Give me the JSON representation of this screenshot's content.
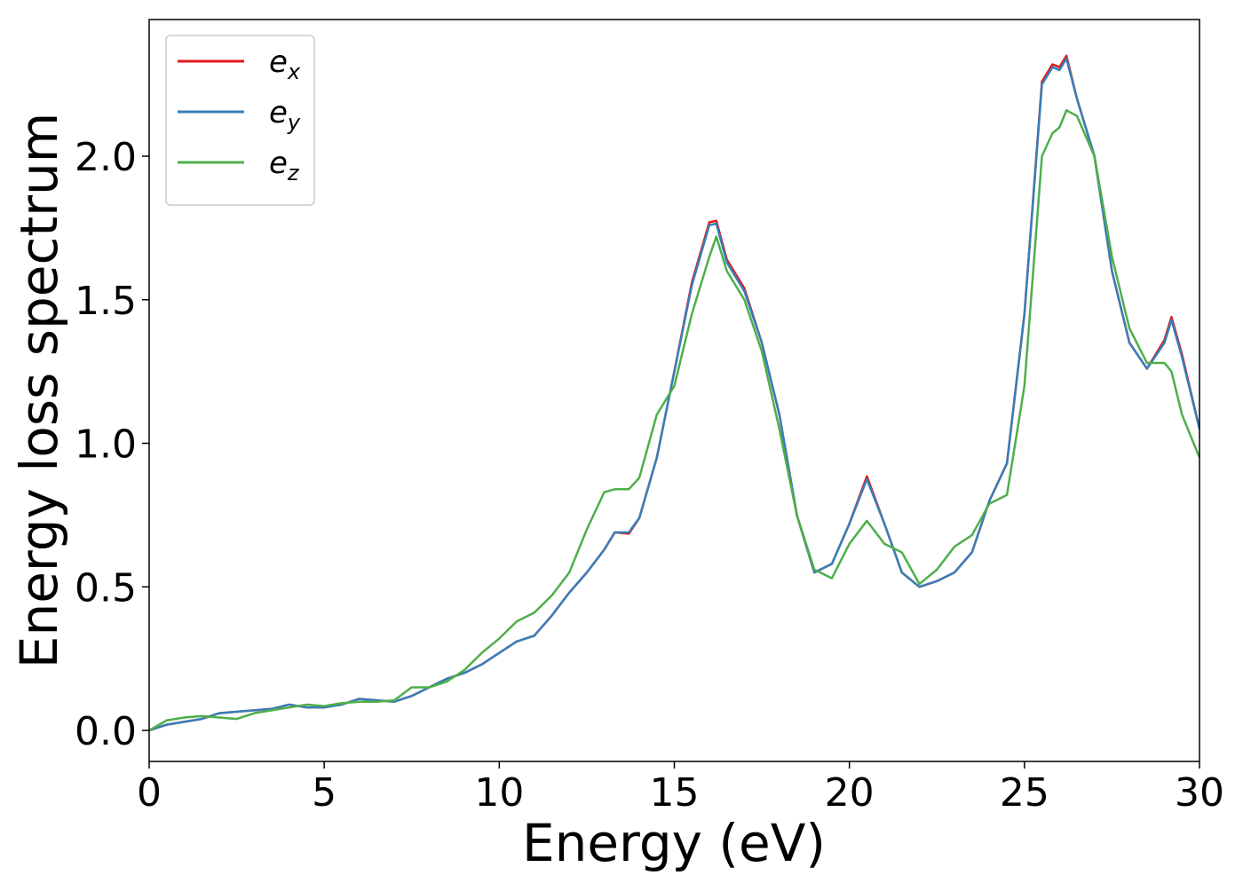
{
  "chart_data": {
    "type": "line",
    "xlabel": "Energy (eV)",
    "ylabel": "Energy loss spectrum",
    "x": [
      0,
      0.5,
      1,
      1.5,
      2,
      2.5,
      3,
      3.5,
      4,
      4.5,
      5,
      5.5,
      6,
      6.5,
      7,
      7.5,
      8,
      8.5,
      9,
      9.5,
      10,
      10.5,
      11,
      11.5,
      12,
      12.5,
      13,
      13.3,
      13.7,
      14,
      14.5,
      15,
      15.5,
      16,
      16.2,
      16.5,
      17,
      17.5,
      18,
      18.5,
      19,
      19.5,
      20,
      20.5,
      21,
      21.5,
      22,
      22.5,
      23,
      23.5,
      24,
      24.5,
      25,
      25.5,
      25.8,
      26,
      26.2,
      26.5,
      27,
      27.5,
      28,
      28.5,
      29,
      29.2,
      29.5,
      30
    ],
    "series": [
      {
        "name": "ex",
        "color": "#e41a1c",
        "values": [
          0,
          0.02,
          0.03,
          0.04,
          0.06,
          0.065,
          0.07,
          0.075,
          0.09,
          0.08,
          0.08,
          0.09,
          0.11,
          0.105,
          0.1,
          0.12,
          0.15,
          0.18,
          0.2,
          0.23,
          0.27,
          0.31,
          0.33,
          0.4,
          0.48,
          0.55,
          0.63,
          0.69,
          0.685,
          0.74,
          0.95,
          1.25,
          1.56,
          1.77,
          1.775,
          1.64,
          1.54,
          1.35,
          1.1,
          0.75,
          0.55,
          0.58,
          0.72,
          0.885,
          0.72,
          0.55,
          0.5,
          0.52,
          0.55,
          0.62,
          0.8,
          0.93,
          1.45,
          2.26,
          2.32,
          2.31,
          2.35,
          2.2,
          2.0,
          1.6,
          1.35,
          1.26,
          1.36,
          1.44,
          1.31,
          1.05
        ]
      },
      {
        "name": "ey",
        "color": "#377eb8",
        "values": [
          0,
          0.02,
          0.03,
          0.04,
          0.06,
          0.065,
          0.07,
          0.075,
          0.09,
          0.08,
          0.08,
          0.09,
          0.11,
          0.105,
          0.1,
          0.12,
          0.15,
          0.18,
          0.2,
          0.23,
          0.27,
          0.31,
          0.33,
          0.4,
          0.48,
          0.55,
          0.63,
          0.69,
          0.69,
          0.74,
          0.95,
          1.25,
          1.55,
          1.76,
          1.765,
          1.63,
          1.53,
          1.35,
          1.1,
          0.75,
          0.55,
          0.58,
          0.72,
          0.875,
          0.72,
          0.55,
          0.5,
          0.52,
          0.55,
          0.62,
          0.8,
          0.93,
          1.45,
          2.25,
          2.31,
          2.3,
          2.34,
          2.2,
          2.0,
          1.6,
          1.35,
          1.26,
          1.35,
          1.43,
          1.3,
          1.05
        ]
      },
      {
        "name": "ez",
        "color": "#4daf4a",
        "values": [
          0,
          0.035,
          0.045,
          0.05,
          0.045,
          0.04,
          0.06,
          0.07,
          0.08,
          0.09,
          0.085,
          0.095,
          0.1,
          0.1,
          0.105,
          0.15,
          0.15,
          0.17,
          0.21,
          0.27,
          0.32,
          0.38,
          0.41,
          0.47,
          0.55,
          0.7,
          0.83,
          0.84,
          0.84,
          0.88,
          1.1,
          1.2,
          1.45,
          1.65,
          1.72,
          1.6,
          1.5,
          1.32,
          1.05,
          0.75,
          0.56,
          0.53,
          0.65,
          0.73,
          0.65,
          0.62,
          0.51,
          0.56,
          0.64,
          0.68,
          0.79,
          0.82,
          1.2,
          2.0,
          2.08,
          2.1,
          2.16,
          2.14,
          2.0,
          1.65,
          1.4,
          1.28,
          1.28,
          1.25,
          1.1,
          0.95
        ]
      }
    ],
    "xlim": [
      0,
      30
    ],
    "ylim": [
      -0.108,
      2.476
    ],
    "xticks": [
      0,
      5,
      10,
      15,
      20,
      25,
      30
    ],
    "yticks": [
      {
        "value": 0,
        "label": "0.0"
      },
      0.5,
      {
        "value": 1,
        "label": "1.0"
      },
      1.5,
      {
        "value": 2,
        "label": "2.0"
      }
    ],
    "legend": "upper left"
  }
}
